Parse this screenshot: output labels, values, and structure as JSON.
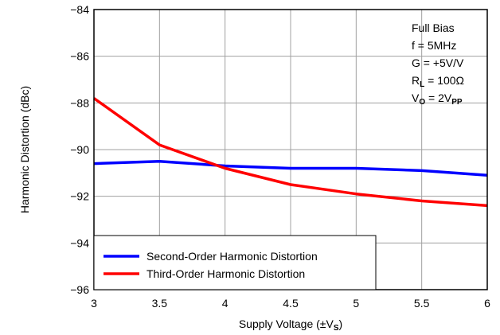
{
  "chart_data": {
    "type": "line",
    "title": "",
    "xlabel": "Supply Voltage (±V",
    "xlabel_sub": "S",
    "xlabel_end": ")",
    "ylabel": "Harmonic Distortion (dBc)",
    "xlim": [
      3,
      6
    ],
    "ylim": [
      -96,
      -84
    ],
    "x_ticks": [
      3,
      3.5,
      4,
      4.5,
      5,
      5.5,
      6
    ],
    "x_tick_labels": [
      "3",
      "3.5",
      "4",
      "4.5",
      "5",
      "5.5",
      "6"
    ],
    "y_ticks": [
      -96,
      -94,
      -92,
      -90,
      -88,
      -86,
      -84
    ],
    "y_tick_labels": [
      "−96",
      "−94",
      "−92",
      "−90",
      "−88",
      "−86",
      "−84"
    ],
    "grid": true,
    "legend_position": "bottom-left",
    "annotation_position": "top-right",
    "x": [
      3,
      3.5,
      4,
      4.5,
      5,
      5.5,
      6
    ],
    "series": [
      {
        "name": "Second-Order Harmonic Distortion",
        "color": "#0000ff",
        "values": [
          -90.6,
          -90.5,
          -90.7,
          -90.8,
          -90.8,
          -90.9,
          -91.1
        ]
      },
      {
        "name": "Third-Order Harmonic Distortion",
        "color": "#ff0000",
        "values": [
          -87.8,
          -89.8,
          -90.8,
          -91.5,
          -91.9,
          -92.2,
          -92.4
        ]
      }
    ],
    "annotations": [
      {
        "text": "Full Bias",
        "sub": "",
        "tail": ""
      },
      {
        "text": "f = 5MHz",
        "sub": "",
        "tail": ""
      },
      {
        "text": "G = +5V/V",
        "sub": "",
        "tail": ""
      },
      {
        "text": "R",
        "sub": "L",
        "tail": " = 100Ω"
      },
      {
        "text": "V",
        "sub": "O",
        "tail": " = 2V",
        "sub2": "PP"
      }
    ]
  }
}
